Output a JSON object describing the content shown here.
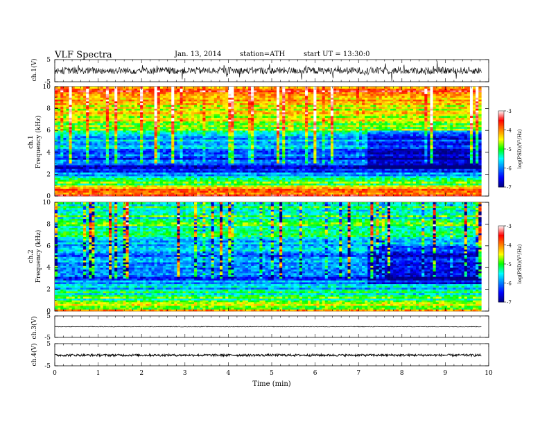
{
  "header": {
    "title": "VLF Spectra",
    "date": "Jan. 13, 2014",
    "station": "station=ATH",
    "start": "start  UT =   13:30:0"
  },
  "colorbar": {
    "label": "log(PSD)(V²/Hz)",
    "ticks": [
      "-3",
      "-4",
      "-5",
      "-6",
      "-7"
    ],
    "range": [
      -7,
      -3
    ],
    "colors": [
      "#000080",
      "#0000ff",
      "#0080ff",
      "#00ffff",
      "#00ff00",
      "#ffff00",
      "#ff8000",
      "#ff0000",
      "#ffffff"
    ]
  },
  "chart_data": [
    {
      "type": "line",
      "name": "ch.1 waveform",
      "ylabel": "ch.1(V)",
      "ylim": [
        -5,
        5
      ],
      "yticks": [
        "5",
        "-5"
      ],
      "xlim": [
        0,
        10
      ],
      "trace": {
        "duration_min": 9.83,
        "baseline": 0.0,
        "noise_amplitude": 1.6,
        "spike_amplitude": 4.0
      }
    },
    {
      "type": "heatmap",
      "name": "ch.1 spectrogram",
      "ylabel": "ch.1\nFrequency (kHz)",
      "ylim": [
        0,
        10
      ],
      "yticks": [
        "0",
        "2",
        "4",
        "6",
        "8",
        "10"
      ],
      "xlim": [
        0,
        10
      ],
      "data_end_min": 9.83,
      "profile_khz_logpsd": [
        [
          0,
          -3.6
        ],
        [
          0.6,
          -4.2
        ],
        [
          1.5,
          -5.4
        ],
        [
          2.5,
          -6.5
        ],
        [
          4.0,
          -6.1
        ],
        [
          5.2,
          -5.8
        ],
        [
          6.5,
          -4.8
        ],
        [
          8.5,
          -4.3
        ],
        [
          10,
          -3.7
        ]
      ],
      "quiet_period_min": [
        7.2,
        9.83
      ]
    },
    {
      "type": "heatmap",
      "name": "ch.2 spectrogram",
      "ylabel": "ch.2\nFrequency (kHz)",
      "ylim": [
        0,
        10
      ],
      "yticks": [
        "0",
        "2",
        "4",
        "6",
        "8",
        "10"
      ],
      "xlim": [
        0,
        10
      ],
      "data_end_min": 9.83,
      "profile_khz_logpsd": [
        [
          0,
          -4.4
        ],
        [
          0.6,
          -4.7
        ],
        [
          2.0,
          -5.6
        ],
        [
          3.0,
          -6.2
        ],
        [
          4.5,
          -6.0
        ],
        [
          6.0,
          -5.8
        ],
        [
          7.5,
          -5.2
        ],
        [
          9.0,
          -5.3
        ],
        [
          10,
          -5.4
        ]
      ],
      "quiet_period_min": [
        7.2,
        9.83
      ]
    },
    {
      "type": "line",
      "name": "ch.3 waveform",
      "ylabel": "ch.3(V)",
      "ylim": [
        -5,
        5
      ],
      "yticks": [
        "5",
        "-5"
      ],
      "xlim": [
        0,
        10
      ],
      "trace": {
        "duration_min": 9.83,
        "baseline": 0.0,
        "noise_amplitude": 0.15
      }
    },
    {
      "type": "line",
      "name": "ch.4 waveform",
      "ylabel": "ch.4(V)",
      "ylim": [
        -5,
        5
      ],
      "yticks": [
        "5",
        "-5"
      ],
      "xlim": [
        0,
        10
      ],
      "trace": {
        "duration_min": 9.83,
        "baseline": -0.2,
        "noise_amplitude": 0.5
      }
    }
  ],
  "xaxis": {
    "label": "Time (min)",
    "ticks": [
      "0",
      "1",
      "2",
      "3",
      "4",
      "5",
      "6",
      "7",
      "8",
      "9",
      "10"
    ],
    "range": [
      0,
      10
    ]
  }
}
